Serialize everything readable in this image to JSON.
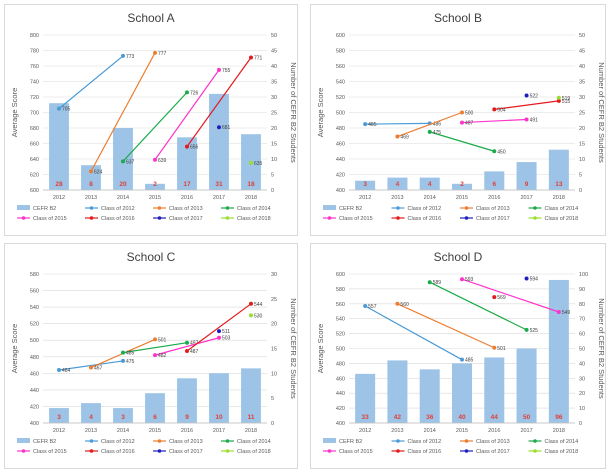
{
  "colors": {
    "bar": "#9dc3e6",
    "bar_label": "#e0403a",
    "gridline": "#d9d9d9",
    "axis_text": "#595959",
    "class_2012": "#4a9bd8",
    "class_2013": "#ed7d31",
    "class_2014": "#1aab4a",
    "class_2015": "#ff33cc",
    "class_2016": "#e41a1c",
    "class_2017": "#1f1fbf",
    "class_2018": "#9ade2e"
  },
  "chart_data": [
    {
      "type": "bar",
      "title": "School A",
      "ylabel": "Average Score",
      "y2label": "Number of CEFR B2 Students",
      "xlabel": "",
      "categories": [
        "2012",
        "2013",
        "2014",
        "2015",
        "2016",
        "2017",
        "2018"
      ],
      "ylim": [
        600,
        800
      ],
      "y_ticks": [
        "600",
        "620",
        "640",
        "660",
        "680",
        "700",
        "720",
        "740",
        "760",
        "780",
        "800"
      ],
      "y2lim": [
        0,
        50
      ],
      "y2_ticks": [
        "0",
        "5",
        "10",
        "15",
        "20",
        "25",
        "30",
        "35",
        "40",
        "45",
        "50"
      ],
      "grid": true,
      "legend_position": "bottom",
      "bar_series": {
        "name": "CEFR B2",
        "values": [
          28,
          8,
          20,
          2,
          17,
          31,
          18
        ]
      },
      "line_series": [
        {
          "name": "Class of 2012",
          "color_key": "class_2012",
          "points": [
            {
              "x": "2012",
              "y": 705,
              "label": "705"
            },
            {
              "x": "2014",
              "y": 773,
              "label": "773"
            }
          ]
        },
        {
          "name": "Class of 2013",
          "color_key": "class_2013",
          "points": [
            {
              "x": "2013",
              "y": 624,
              "label": "624"
            },
            {
              "x": "2015",
              "y": 777,
              "label": "777"
            }
          ]
        },
        {
          "name": "Class of 2014",
          "color_key": "class_2014",
          "points": [
            {
              "x": "2014",
              "y": 637,
              "label": "637"
            },
            {
              "x": "2016",
              "y": 726,
              "label": "726"
            }
          ]
        },
        {
          "name": "Class of 2015",
          "color_key": "class_2015",
          "points": [
            {
              "x": "2015",
              "y": 639,
              "label": "639"
            },
            {
              "x": "2017",
              "y": 755,
              "label": "755"
            }
          ]
        },
        {
          "name": "Class of 2016",
          "color_key": "class_2016",
          "points": [
            {
              "x": "2016",
              "y": 656,
              "label": "656"
            },
            {
              "x": "2018",
              "y": 771,
              "label": "771"
            }
          ]
        },
        {
          "name": "Class of 2017",
          "color_key": "class_2017",
          "points": [
            {
              "x": "2017",
              "y": 681,
              "label": "681"
            }
          ]
        },
        {
          "name": "Class of 2018",
          "color_key": "class_2018",
          "points": [
            {
              "x": "2018",
              "y": 635,
              "label": "635"
            }
          ]
        }
      ]
    },
    {
      "type": "bar",
      "title": "School B",
      "ylabel": "Average Score",
      "y2label": "Number of CEFR B2 Students",
      "xlabel": "",
      "categories": [
        "2012",
        "2013",
        "2014",
        "2015",
        "2016",
        "2017",
        "2018"
      ],
      "ylim": [
        400,
        600
      ],
      "y_ticks": [
        "400",
        "420",
        "440",
        "460",
        "480",
        "500",
        "520",
        "540",
        "560",
        "580",
        "600"
      ],
      "y2lim": [
        0,
        50
      ],
      "y2_ticks": [
        "0",
        "5",
        "10",
        "15",
        "20",
        "25",
        "30",
        "35",
        "40",
        "45",
        "50"
      ],
      "grid": true,
      "legend_position": "bottom",
      "bar_series": {
        "name": "CEFR B2",
        "values": [
          3,
          4,
          4,
          2,
          6,
          9,
          13
        ]
      },
      "line_series": [
        {
          "name": "Class of 2012",
          "color_key": "class_2012",
          "points": [
            {
              "x": "2012",
              "y": 485,
              "label": "485"
            },
            {
              "x": "2014",
              "y": 486,
              "label": "486"
            }
          ]
        },
        {
          "name": "Class of 2013",
          "color_key": "class_2013",
          "points": [
            {
              "x": "2013",
              "y": 469,
              "label": "469"
            },
            {
              "x": "2015",
              "y": 500,
              "label": "500"
            }
          ]
        },
        {
          "name": "Class of 2014",
          "color_key": "class_2014",
          "points": [
            {
              "x": "2014",
              "y": 475,
              "label": "475"
            },
            {
              "x": "2016",
              "y": 450,
              "label": "450"
            }
          ]
        },
        {
          "name": "Class of 2015",
          "color_key": "class_2015",
          "points": [
            {
              "x": "2015",
              "y": 487,
              "label": "487"
            },
            {
              "x": "2017",
              "y": 491,
              "label": "491"
            }
          ]
        },
        {
          "name": "Class of 2016",
          "color_key": "class_2016",
          "points": [
            {
              "x": "2016",
              "y": 504,
              "label": "504"
            },
            {
              "x": "2018",
              "y": 515,
              "label": "515"
            }
          ]
        },
        {
          "name": "Class of 2017",
          "color_key": "class_2017",
          "points": [
            {
              "x": "2017",
              "y": 522,
              "label": "522"
            }
          ]
        },
        {
          "name": "Class of 2018",
          "color_key": "class_2018",
          "points": [
            {
              "x": "2018",
              "y": 519,
              "label": "519"
            }
          ]
        }
      ]
    },
    {
      "type": "bar",
      "title": "School C",
      "ylabel": "Average Score",
      "y2label": "Number of CEFR B2 Students",
      "xlabel": "",
      "categories": [
        "2012",
        "2013",
        "2014",
        "2015",
        "2016",
        "2017",
        "2018"
      ],
      "ylim": [
        400,
        580
      ],
      "y_ticks": [
        "400",
        "420",
        "440",
        "460",
        "480",
        "500",
        "520",
        "540",
        "560",
        "580"
      ],
      "y2lim": [
        0,
        30
      ],
      "y2_ticks": [
        "0",
        "5",
        "10",
        "15",
        "20",
        "25",
        "30"
      ],
      "grid": true,
      "legend_position": "bottom",
      "bar_series": {
        "name": "CEFR B2",
        "values": [
          3,
          4,
          3,
          6,
          9,
          10,
          11
        ]
      },
      "line_series": [
        {
          "name": "Class of 2012",
          "color_key": "class_2012",
          "points": [
            {
              "x": "2012",
              "y": 464,
              "label": "464"
            },
            {
              "x": "2014",
              "y": 475,
              "label": "475"
            }
          ]
        },
        {
          "name": "Class of 2013",
          "color_key": "class_2013",
          "points": [
            {
              "x": "2013",
              "y": 467,
              "label": "467"
            },
            {
              "x": "2015",
              "y": 501,
              "label": "501"
            }
          ]
        },
        {
          "name": "Class of 2014",
          "color_key": "class_2014",
          "points": [
            {
              "x": "2014",
              "y": 485,
              "label": "485"
            },
            {
              "x": "2016",
              "y": 497,
              "label": "497"
            }
          ]
        },
        {
          "name": "Class of 2015",
          "color_key": "class_2015",
          "points": [
            {
              "x": "2015",
              "y": 482,
              "label": "482"
            },
            {
              "x": "2017",
              "y": 503,
              "label": "503"
            }
          ]
        },
        {
          "name": "Class of 2016",
          "color_key": "class_2016",
          "points": [
            {
              "x": "2016",
              "y": 487,
              "label": "487"
            },
            {
              "x": "2018",
              "y": 544,
              "label": "544"
            }
          ]
        },
        {
          "name": "Class of 2017",
          "color_key": "class_2017",
          "points": [
            {
              "x": "2017",
              "y": 511,
              "label": "511"
            }
          ]
        },
        {
          "name": "Class of 2018",
          "color_key": "class_2018",
          "points": [
            {
              "x": "2018",
              "y": 530,
              "label": "530"
            }
          ]
        }
      ]
    },
    {
      "type": "bar",
      "title": "School D",
      "ylabel": "Average Score",
      "y2label": "Number of CEFR B2 Students",
      "xlabel": "",
      "categories": [
        "2012",
        "2013",
        "2014",
        "2015",
        "2016",
        "2017",
        "2018"
      ],
      "ylim": [
        400,
        600
      ],
      "y_ticks": [
        "400",
        "420",
        "440",
        "460",
        "480",
        "500",
        "520",
        "540",
        "560",
        "580",
        "600"
      ],
      "y2lim": [
        0,
        100
      ],
      "y2_ticks": [
        "0",
        "10",
        "20",
        "30",
        "40",
        "50",
        "60",
        "70",
        "80",
        "90",
        "100"
      ],
      "grid": true,
      "legend_position": "bottom",
      "bar_series": {
        "name": "CEFR B2",
        "values": [
          33,
          42,
          36,
          40,
          44,
          50,
          96
        ]
      },
      "line_series": [
        {
          "name": "Class of 2012",
          "color_key": "class_2012",
          "points": [
            {
              "x": "2012",
              "y": 557,
              "label": "557"
            },
            {
              "x": "2015",
              "y": 485,
              "label": "485"
            }
          ]
        },
        {
          "name": "Class of 2013",
          "color_key": "class_2013",
          "points": [
            {
              "x": "2013",
              "y": 560,
              "label": "560"
            },
            {
              "x": "2016",
              "y": 501,
              "label": "501"
            }
          ]
        },
        {
          "name": "Class of 2014",
          "color_key": "class_2014",
          "points": [
            {
              "x": "2014",
              "y": 589,
              "label": "589"
            },
            {
              "x": "2017",
              "y": 525,
              "label": "525"
            }
          ]
        },
        {
          "name": "Class of 2015",
          "color_key": "class_2015",
          "points": [
            {
              "x": "2015",
              "y": 593,
              "label": "593"
            },
            {
              "x": "2018",
              "y": 549,
              "label": "549"
            }
          ]
        },
        {
          "name": "Class of 2016",
          "color_key": "class_2016",
          "points": [
            {
              "x": "2016",
              "y": 569,
              "label": "569"
            }
          ]
        },
        {
          "name": "Class of 2017",
          "color_key": "class_2017",
          "points": [
            {
              "x": "2017",
              "y": 594,
              "label": "594"
            }
          ]
        },
        {
          "name": "Class of 2018",
          "color_key": "class_2018",
          "points": []
        }
      ]
    }
  ]
}
